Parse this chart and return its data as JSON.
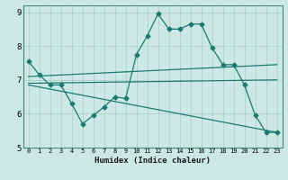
{
  "xlabel": "Humidex (Indice chaleur)",
  "ylabel": "",
  "xlim": [
    -0.5,
    23.5
  ],
  "ylim": [
    5,
    9.2
  ],
  "xticks": [
    0,
    1,
    2,
    3,
    4,
    5,
    6,
    7,
    8,
    9,
    10,
    11,
    12,
    13,
    14,
    15,
    16,
    17,
    18,
    19,
    20,
    21,
    22,
    23
  ],
  "yticks": [
    5,
    6,
    7,
    8,
    9
  ],
  "bg_color": "#cce8e5",
  "line_color": "#1a7a6e",
  "grid_color": "#aaccca",
  "line1_x": [
    0,
    1,
    2,
    3,
    4,
    5,
    6,
    7,
    8,
    9,
    10,
    11,
    12,
    13,
    14,
    15,
    16,
    17,
    18,
    19,
    20,
    21,
    22,
    23
  ],
  "line1_y": [
    7.55,
    7.15,
    6.85,
    6.85,
    6.3,
    5.7,
    5.95,
    6.2,
    6.5,
    6.45,
    7.75,
    8.3,
    8.95,
    8.5,
    8.5,
    8.65,
    8.65,
    7.95,
    7.45,
    7.45,
    6.85,
    5.95,
    5.45,
    5.45
  ],
  "line2_x": [
    0,
    23
  ],
  "line2_y": [
    7.1,
    7.45
  ],
  "line3_x": [
    0,
    23
  ],
  "line3_y": [
    6.9,
    7.0
  ],
  "line4_x": [
    0,
    23
  ],
  "line4_y": [
    6.85,
    5.45
  ],
  "marker": "D",
  "marker_size": 2.5,
  "linewidth": 0.9
}
